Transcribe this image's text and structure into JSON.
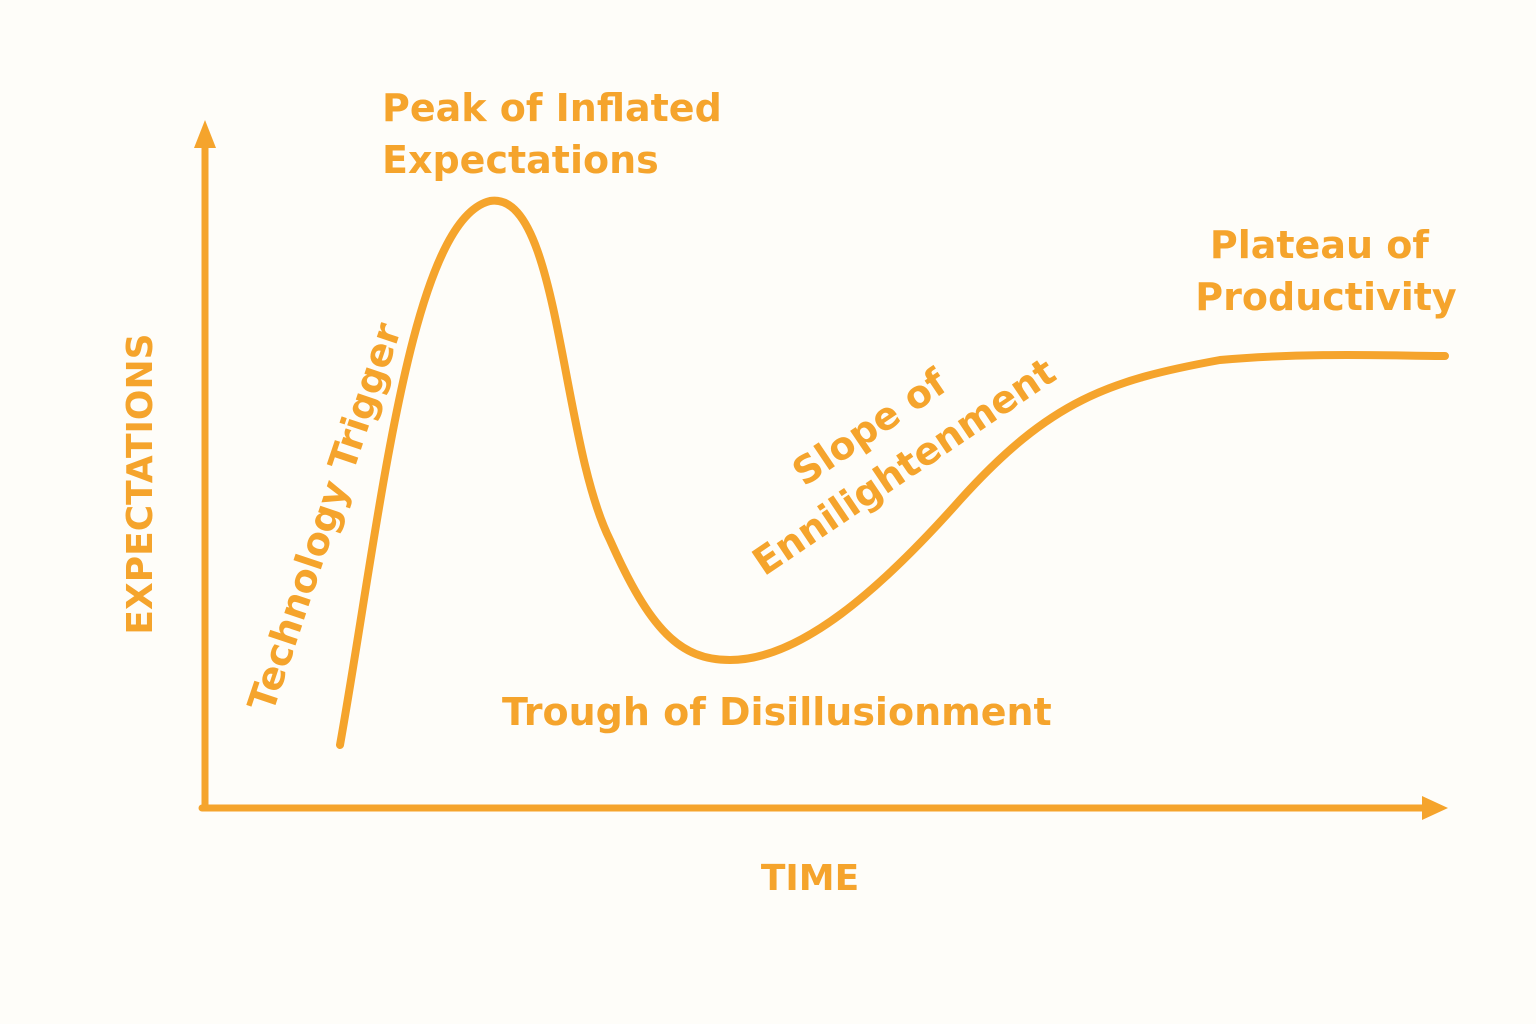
{
  "theme": {
    "accent": "#f5a42c",
    "background": "#fefdf9"
  },
  "axes": {
    "y_label": "EXPECTATIONS",
    "x_label": "TIME"
  },
  "phases": {
    "technology_trigger": "Technology Trigger",
    "peak": [
      "Peak of Inflated",
      "Expectations"
    ],
    "trough": "Trough of Disillusionment",
    "slope": [
      "Slope of",
      "Ennilightenment"
    ],
    "plateau": [
      "Plateau of",
      "Productivity"
    ]
  }
}
